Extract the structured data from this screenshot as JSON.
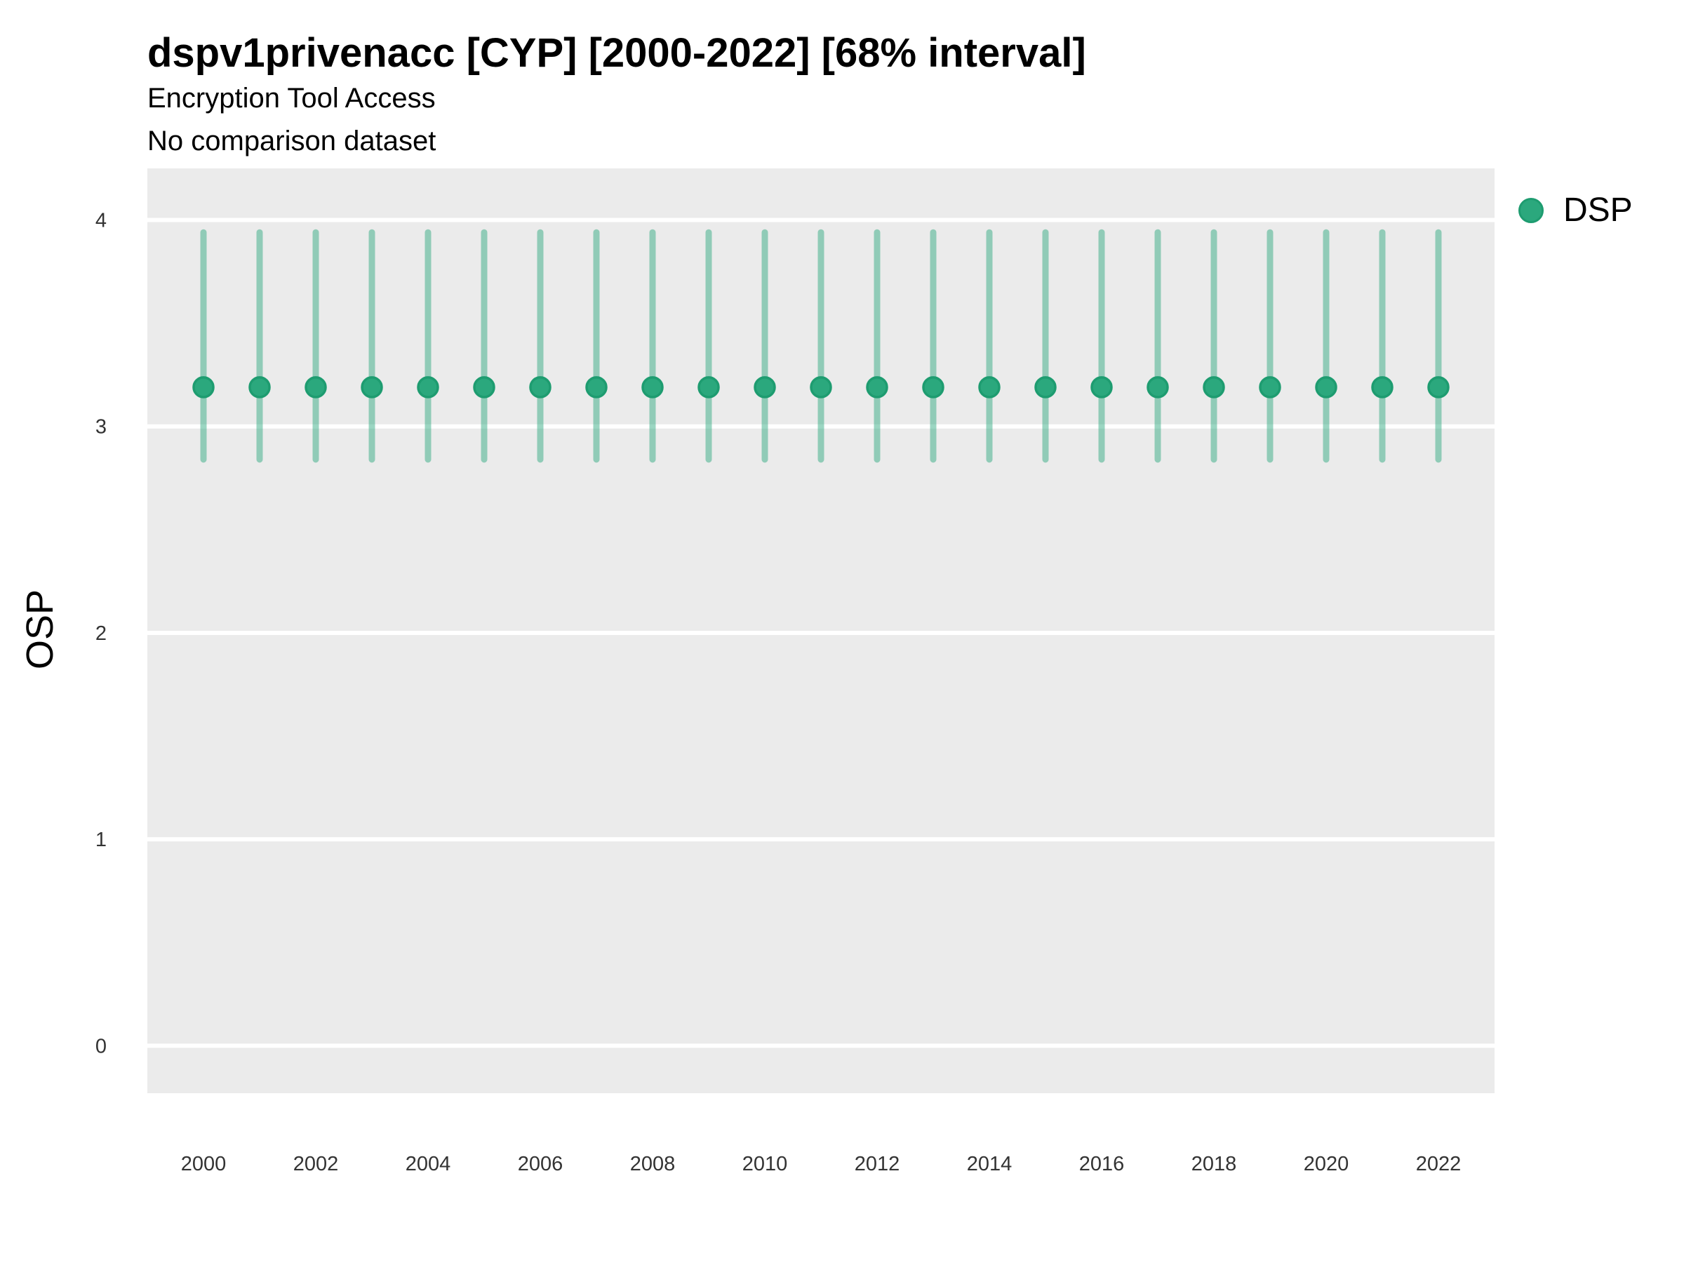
{
  "chart_data": {
    "type": "scatter",
    "subtype": "pointrange-interval",
    "title": "dspv1privenacc [CYP] [2000-2022] [68% interval]",
    "subtitle": "Encryption Tool Access",
    "note": "No comparison dataset",
    "xlabel": "",
    "ylabel": "OSP",
    "interval_level": "68%",
    "grid": "horizontal-major-only",
    "legend": {
      "position": "right",
      "entries": [
        {
          "label": "DSP",
          "color": "#2BA87D"
        }
      ]
    },
    "x": [
      2000,
      2001,
      2002,
      2003,
      2004,
      2005,
      2006,
      2007,
      2008,
      2009,
      2010,
      2011,
      2012,
      2013,
      2014,
      2015,
      2016,
      2017,
      2018,
      2019,
      2020,
      2021,
      2022
    ],
    "series": [
      {
        "name": "DSP",
        "center": [
          3.19,
          3.19,
          3.19,
          3.19,
          3.19,
          3.19,
          3.19,
          3.19,
          3.19,
          3.19,
          3.19,
          3.19,
          3.19,
          3.19,
          3.19,
          3.19,
          3.19,
          3.19,
          3.19,
          3.19,
          3.19,
          3.19,
          3.19
        ],
        "lower": [
          2.84,
          2.84,
          2.84,
          2.84,
          2.84,
          2.84,
          2.84,
          2.84,
          2.84,
          2.84,
          2.84,
          2.84,
          2.84,
          2.84,
          2.84,
          2.84,
          2.84,
          2.84,
          2.84,
          2.84,
          2.84,
          2.84,
          2.84
        ],
        "upper": [
          3.94,
          3.94,
          3.94,
          3.94,
          3.94,
          3.94,
          3.94,
          3.94,
          3.94,
          3.94,
          3.94,
          3.94,
          3.94,
          3.94,
          3.94,
          3.94,
          3.94,
          3.94,
          3.94,
          3.94,
          3.94,
          3.94,
          3.94
        ]
      }
    ],
    "ylim": [
      -0.23,
      4.25
    ],
    "yticks": [
      0,
      1,
      2,
      3,
      4
    ],
    "xticks": [
      2000,
      2002,
      2004,
      2006,
      2008,
      2010,
      2012,
      2014,
      2016,
      2018,
      2020,
      2022
    ],
    "colors": {
      "point_fill": "#2BA87D",
      "point_stroke": "#1E9C70",
      "interval_line": "#2BA87D",
      "interval_opacity": 0.47,
      "panel_background": "#EBEBEB",
      "gridline": "#FFFFFF",
      "tick_text": "#333333",
      "text": "#000000"
    }
  }
}
